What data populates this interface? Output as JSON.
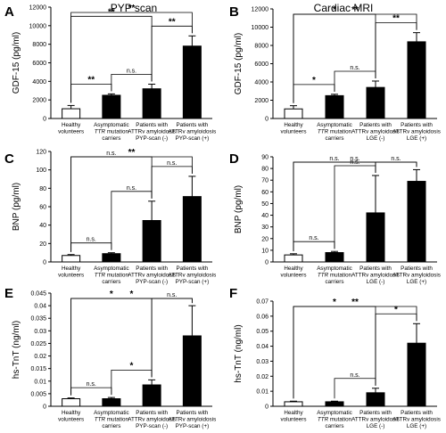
{
  "chart_data": [
    {
      "type": "bar",
      "panel": "A",
      "title": "PYP scan",
      "ylabel": "GDF-15 (pg/ml)",
      "ylim": [
        0,
        12000
      ],
      "yticks": [
        "0",
        "2000",
        "4000",
        "6000",
        "8000",
        "10000",
        "12000"
      ],
      "tick_values": [
        0,
        2000,
        4000,
        6000,
        8000,
        10000,
        12000
      ],
      "categories": [
        [
          "Healthy",
          "volunteers"
        ],
        [
          "Asymptomatic",
          "TTR mutation",
          "carriers"
        ],
        [
          "Patients with",
          "ATTRv amyloidosis",
          "PYP-scan (-)"
        ],
        [
          "Patients with",
          "ATTRv amyloidosis",
          "PYP-scan (+)"
        ]
      ],
      "values": [
        1050,
        2500,
        3200,
        7800
      ],
      "errors": [
        350,
        150,
        500,
        1100
      ],
      "fills": [
        "#ffffff",
        "#000000",
        "#000000",
        "#000000"
      ],
      "comparisons": [
        {
          "from": 0,
          "to": 1,
          "label": "**"
        },
        {
          "from": 1,
          "to": 2,
          "label": "n.s."
        },
        {
          "from": 2,
          "to": 3,
          "label": "**"
        },
        {
          "from": 0,
          "to": 2,
          "label": "**"
        },
        {
          "from": 0,
          "to": 3,
          "label": "**"
        }
      ]
    },
    {
      "type": "bar",
      "panel": "B",
      "title": "Cardiac MRI",
      "ylabel": "GDF-15 (pg/ml)",
      "ylim": [
        0,
        12000
      ],
      "yticks": [
        "0",
        "2000",
        "4000",
        "6000",
        "8000",
        "10000",
        "12000"
      ],
      "tick_values": [
        0,
        2000,
        4000,
        6000,
        8000,
        10000,
        12000
      ],
      "categories": [
        [
          "Healthy",
          "volunteers"
        ],
        [
          "Asymptomatic",
          "TTR mutation",
          "carriers"
        ],
        [
          "Patients with",
          "ATTRv amyloidosis",
          "LGE (-)"
        ],
        [
          "Patients with",
          "ATTRv amyloidosis",
          "LGE (+)"
        ]
      ],
      "values": [
        1050,
        2500,
        3400,
        8400
      ],
      "errors": [
        350,
        150,
        700,
        1000
      ],
      "fills": [
        "#ffffff",
        "#000000",
        "#000000",
        "#000000"
      ],
      "comparisons": [
        {
          "from": 0,
          "to": 1,
          "label": "*"
        },
        {
          "from": 1,
          "to": 2,
          "label": "n.s."
        },
        {
          "from": 2,
          "to": 3,
          "label": "**"
        },
        {
          "from": 0,
          "to": 2,
          "label": "*"
        },
        {
          "from": 0,
          "to": 3,
          "label": "**"
        }
      ]
    },
    {
      "type": "bar",
      "panel": "C",
      "title": "",
      "ylabel": "BNP (pg/ml)",
      "ylim": [
        0,
        120
      ],
      "yticks": [
        "0",
        "20",
        "40",
        "60",
        "80",
        "100",
        "120"
      ],
      "tick_values": [
        0,
        20,
        40,
        60,
        80,
        100,
        120
      ],
      "categories": [
        [
          "Healthy",
          "volunteers"
        ],
        [
          "Asymptomatic",
          "TTR mutation",
          "carriers"
        ],
        [
          "Patients with",
          "ATTRv amyloidosis",
          "PYP-scan (-)"
        ],
        [
          "Patients with",
          "ATTRv amyloidosis",
          "PYP-scan (+)"
        ]
      ],
      "values": [
        7,
        9,
        45,
        71
      ],
      "errors": [
        1,
        1,
        21,
        22
      ],
      "fills": [
        "#ffffff",
        "#000000",
        "#000000",
        "#000000"
      ],
      "comparisons": [
        {
          "from": 0,
          "to": 1,
          "label": "n.s."
        },
        {
          "from": 1,
          "to": 2,
          "label": "n.s."
        },
        {
          "from": 0,
          "to": 2,
          "label": "n.s."
        },
        {
          "from": 2,
          "to": 3,
          "label": "n.s."
        },
        {
          "from": 0,
          "to": 3,
          "label": "**"
        }
      ]
    },
    {
      "type": "bar",
      "panel": "D",
      "title": "",
      "ylabel": "BNP (pg/ml)",
      "ylim": [
        0,
        90
      ],
      "yticks": [
        "0",
        "10",
        "20",
        "30",
        "40",
        "50",
        "60",
        "70",
        "80",
        "90"
      ],
      "tick_values": [
        0,
        10,
        20,
        30,
        40,
        50,
        60,
        70,
        80,
        90
      ],
      "categories": [
        [
          "Healthy",
          "volunteers"
        ],
        [
          "Asymptomatic",
          "TTR mutation",
          "carriers"
        ],
        [
          "Patients with",
          "ATTRv amyloidosis",
          "LGE (-)"
        ],
        [
          "Patients with",
          "ATTRv amyloidosis",
          "LGE (+)"
        ]
      ],
      "values": [
        6,
        8,
        42,
        69
      ],
      "errors": [
        1,
        1,
        32,
        10
      ],
      "fills": [
        "#ffffff",
        "#000000",
        "#000000",
        "#000000"
      ],
      "comparisons": [
        {
          "from": 0,
          "to": 1,
          "label": "n.s."
        },
        {
          "from": 1,
          "to": 2,
          "label": "n.s."
        },
        {
          "from": 0,
          "to": 2,
          "label": "n.s."
        },
        {
          "from": 2,
          "to": 3,
          "label": "n.s."
        },
        {
          "from": 0,
          "to": 3,
          "label": "n.s."
        }
      ]
    },
    {
      "type": "bar",
      "panel": "E",
      "title": "",
      "ylabel": "hs-TnT (ng/ml)",
      "ylim": [
        0,
        0.045
      ],
      "yticks": [
        "0",
        "0.005",
        "0.01",
        "0.015",
        "0.02",
        "0.025",
        "0.03",
        "0.035",
        "0.04",
        "0.045"
      ],
      "tick_values": [
        0,
        0.005,
        0.01,
        0.015,
        0.02,
        0.025,
        0.03,
        0.035,
        0.04,
        0.045
      ],
      "categories": [
        [
          "Healthy",
          "volunteers"
        ],
        [
          "Asymptomatic",
          "TTR mutation",
          "carriers"
        ],
        [
          "Patients with",
          "ATTRv amyloidosis",
          "PYP-scan (-)"
        ],
        [
          "Patients with",
          "ATTRv amyloidosis",
          "PYP-scan (+)"
        ]
      ],
      "values": [
        0.003,
        0.003,
        0.0085,
        0.028
      ],
      "errors": [
        0.0003,
        0.0005,
        0.002,
        0.012
      ],
      "fills": [
        "#ffffff",
        "#000000",
        "#000000",
        "#000000"
      ],
      "comparisons": [
        {
          "from": 0,
          "to": 1,
          "label": "n.s."
        },
        {
          "from": 1,
          "to": 2,
          "label": "*"
        },
        {
          "from": 0,
          "to": 2,
          "label": "*"
        },
        {
          "from": 2,
          "to": 3,
          "label": "n.s."
        },
        {
          "from": 0,
          "to": 3,
          "label": "*"
        }
      ]
    },
    {
      "type": "bar",
      "panel": "F",
      "title": "",
      "ylabel": "hs-TnT (ng/ml)",
      "ylim": [
        0,
        0.07
      ],
      "yticks": [
        "0",
        "0.01",
        "0.02",
        "0.03",
        "0.04",
        "0.05",
        "0.06",
        "0.07"
      ],
      "tick_values": [
        0,
        0.01,
        0.02,
        0.03,
        0.04,
        0.05,
        0.06,
        0.07
      ],
      "categories": [
        [
          "Healthy",
          "volunteers"
        ],
        [
          "Asymptomatic",
          "TTR mutation",
          "carriers"
        ],
        [
          "Patients with",
          "ATTRv amyloidosis",
          "LGE (-)"
        ],
        [
          "Patients with",
          "ATTRv amyloidosis",
          "LGE (+)"
        ]
      ],
      "values": [
        0.003,
        0.003,
        0.009,
        0.042
      ],
      "errors": [
        0.0004,
        0.0004,
        0.003,
        0.013
      ],
      "fills": [
        "#ffffff",
        "#000000",
        "#000000",
        "#000000"
      ],
      "comparisons": [
        {
          "from": 1,
          "to": 2,
          "label": "n.s."
        },
        {
          "from": 2,
          "to": 3,
          "label": "*"
        },
        {
          "from": 0,
          "to": 2,
          "label": "*"
        },
        {
          "from": 0,
          "to": 3,
          "label": "**"
        }
      ]
    }
  ]
}
